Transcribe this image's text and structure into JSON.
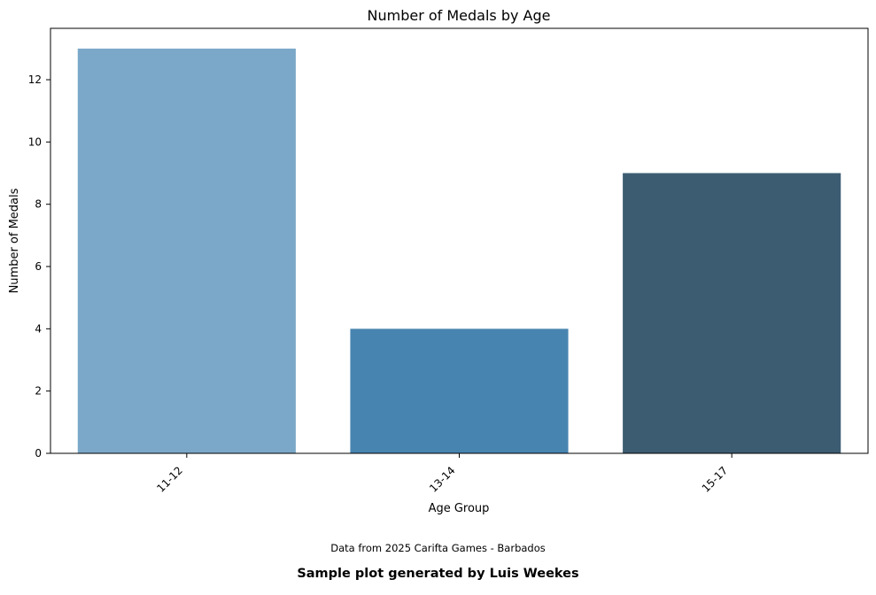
{
  "chart_data": {
    "type": "bar",
    "title": "Number of Medals by Age",
    "xlabel": "Age Group",
    "ylabel": "Number of Medals",
    "categories": [
      "11-12",
      "13-14",
      "15-17"
    ],
    "values": [
      13,
      4,
      9
    ],
    "bar_colors": [
      "#7ba8c8",
      "#4884b0",
      "#3c5c71"
    ],
    "ylim": [
      0,
      13.65
    ],
    "yticks": [
      0,
      2,
      4,
      6,
      8,
      10,
      12
    ],
    "grid": false,
    "xtick_rotation": 45
  },
  "footer": {
    "note": "Data from 2025 Carifta Games - Barbados",
    "credit": "Sample plot generated by Luis Weekes"
  }
}
